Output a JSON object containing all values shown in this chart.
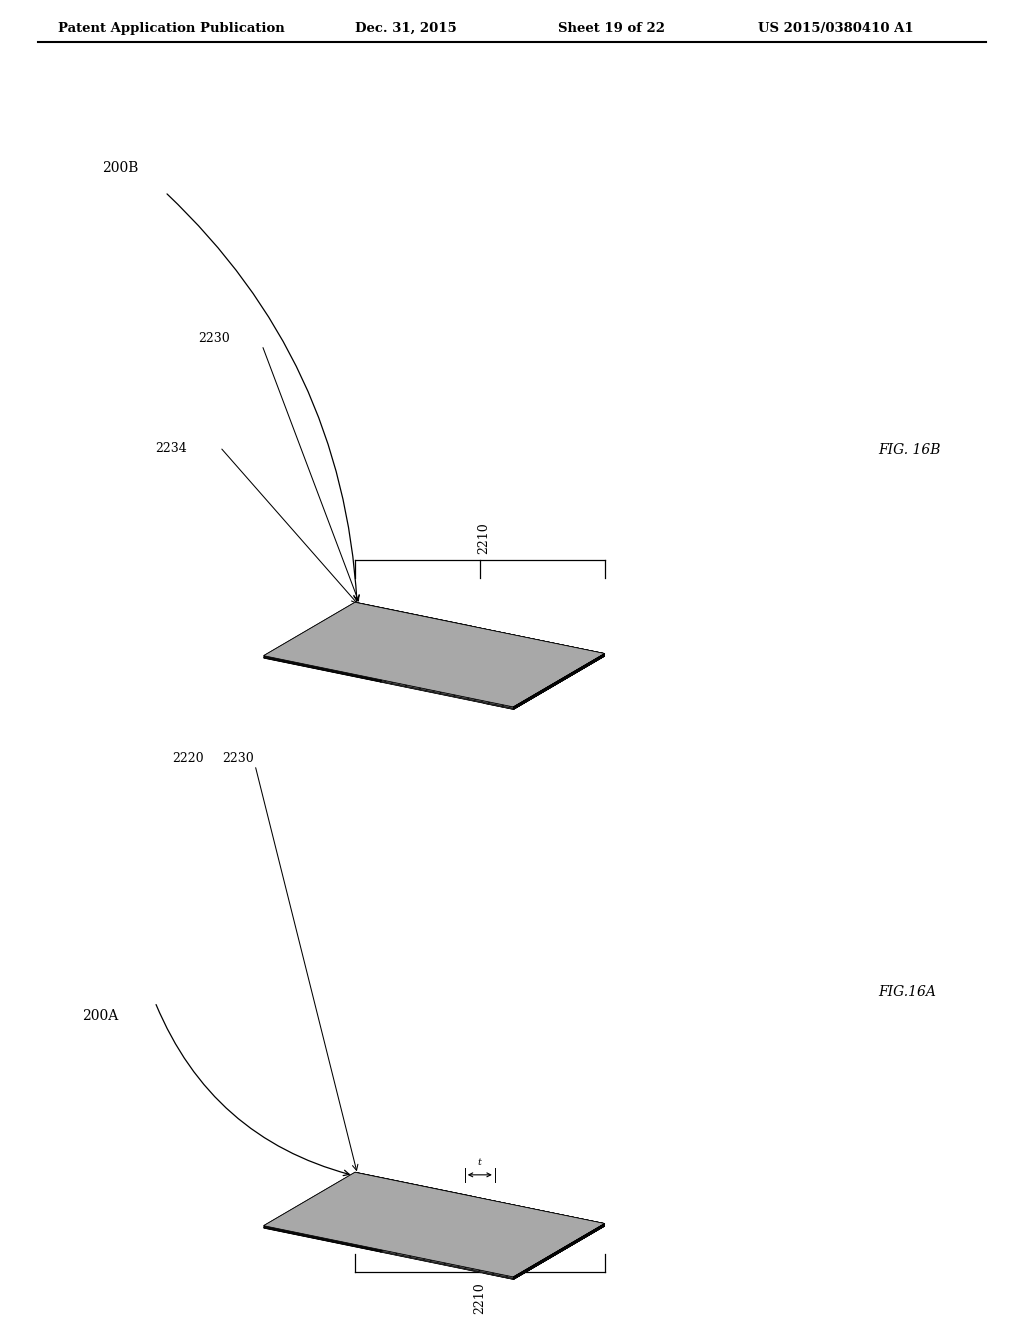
{
  "header_left": "Patent Application Publication",
  "header_date": "Dec. 31, 2015",
  "header_sheet": "Sheet 19 of 22",
  "header_patent": "US 2015/0380410 A1",
  "fig_top": "FIG. 16B",
  "fig_bot": "FIG.16A",
  "label_200B": "200B",
  "label_200A": "200A",
  "label_2210": "2210",
  "label_2230_top": "2230",
  "label_2234": "2234",
  "label_2220": "2220",
  "label_2230_bot": "2230",
  "col_dark": "#1a1a1a",
  "col_dark2": "#2e2e2e",
  "col_med_dark": "#484848",
  "col_med": "#747474",
  "col_light": "#a8a8a8",
  "col_lighter": "#c8c8c8",
  "col_very_light": "#dedede",
  "col_bg": "#ffffff"
}
